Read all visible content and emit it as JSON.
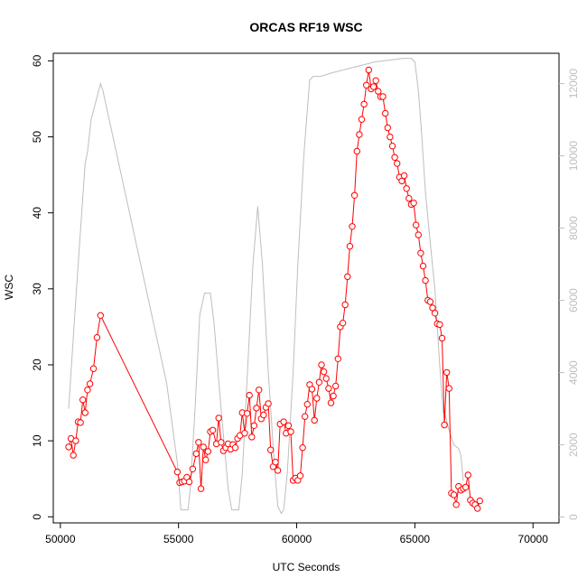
{
  "chart_data": {
    "type": "line",
    "title": "ORCAS RF19 WSC",
    "xlabel": "UTC Seconds",
    "ylabel": "WSC",
    "xlim": [
      49700,
      71100
    ],
    "ylim": [
      -0.8,
      61.0
    ],
    "y2lim": [
      -160,
      12840
    ],
    "x_ticks": [
      50000,
      55000,
      60000,
      65000,
      70000
    ],
    "y_ticks": [
      0,
      10,
      20,
      30,
      40,
      50,
      60
    ],
    "y2_ticks": [
      0,
      2000,
      4000,
      6000,
      8000,
      10000,
      12000
    ],
    "colors": {
      "wsc": "#ff0000",
      "altitude": "#bebebe",
      "axis": "#000000"
    },
    "series": [
      {
        "key": "wsc",
        "axis": "left",
        "style": "line-with-circles",
        "points": [
          [
            50350,
            9.2
          ],
          [
            50450,
            10.3
          ],
          [
            50550,
            8.1
          ],
          [
            50650,
            10.0
          ],
          [
            50750,
            12.5
          ],
          [
            50850,
            12.4
          ],
          [
            50950,
            15.4
          ],
          [
            51050,
            13.7
          ],
          [
            51150,
            16.7
          ],
          [
            51250,
            17.5
          ],
          [
            51400,
            19.5
          ],
          [
            51550,
            23.6
          ],
          [
            51700,
            26.5
          ],
          [
            54950,
            5.9
          ],
          [
            55050,
            4.5
          ],
          [
            55150,
            4.6
          ],
          [
            55250,
            4.7
          ],
          [
            55350,
            5.2
          ],
          [
            55450,
            4.6
          ],
          [
            55600,
            6.3
          ],
          [
            55750,
            8.3
          ],
          [
            55850,
            9.8
          ],
          [
            55950,
            3.7
          ],
          [
            56050,
            9.2
          ],
          [
            56150,
            7.5
          ],
          [
            56250,
            8.6
          ],
          [
            56350,
            11.2
          ],
          [
            56450,
            11.4
          ],
          [
            56600,
            9.6
          ],
          [
            56700,
            13.0
          ],
          [
            56800,
            9.8
          ],
          [
            56900,
            8.7
          ],
          [
            57000,
            9.1
          ],
          [
            57100,
            9.6
          ],
          [
            57200,
            8.9
          ],
          [
            57300,
            9.5
          ],
          [
            57400,
            9.1
          ],
          [
            57500,
            10.3
          ],
          [
            57600,
            10.7
          ],
          [
            57700,
            13.7
          ],
          [
            57800,
            11.0
          ],
          [
            57900,
            13.6
          ],
          [
            58000,
            16.0
          ],
          [
            58100,
            10.5
          ],
          [
            58200,
            12.0
          ],
          [
            58300,
            14.3
          ],
          [
            58400,
            16.7
          ],
          [
            58500,
            12.9
          ],
          [
            58600,
            13.4
          ],
          [
            58700,
            14.4
          ],
          [
            58800,
            14.9
          ],
          [
            58900,
            8.8
          ],
          [
            59000,
            6.6
          ],
          [
            59100,
            7.2
          ],
          [
            59200,
            6.1
          ],
          [
            59300,
            12.2
          ],
          [
            59450,
            12.5
          ],
          [
            59550,
            11.0
          ],
          [
            59650,
            12.0
          ],
          [
            59750,
            11.2
          ],
          [
            59850,
            4.8
          ],
          [
            59950,
            5.1
          ],
          [
            60050,
            4.8
          ],
          [
            60150,
            5.4
          ],
          [
            60250,
            9.1
          ],
          [
            60350,
            13.2
          ],
          [
            60450,
            14.8
          ],
          [
            60550,
            17.4
          ],
          [
            60650,
            16.8
          ],
          [
            60750,
            12.7
          ],
          [
            60850,
            15.6
          ],
          [
            60950,
            17.7
          ],
          [
            61050,
            20.0
          ],
          [
            61150,
            19.1
          ],
          [
            61250,
            18.2
          ],
          [
            61350,
            16.9
          ],
          [
            61450,
            15.0
          ],
          [
            61550,
            15.9
          ],
          [
            61650,
            17.2
          ],
          [
            61750,
            20.8
          ],
          [
            61850,
            25.0
          ],
          [
            61950,
            25.5
          ],
          [
            62050,
            27.9
          ],
          [
            62150,
            31.6
          ],
          [
            62250,
            35.6
          ],
          [
            62350,
            38.2
          ],
          [
            62450,
            42.3
          ],
          [
            62550,
            48.1
          ],
          [
            62650,
            50.3
          ],
          [
            62750,
            52.3
          ],
          [
            62850,
            54.3
          ],
          [
            62950,
            56.8
          ],
          [
            63050,
            58.8
          ],
          [
            63150,
            56.3
          ],
          [
            63250,
            56.6
          ],
          [
            63350,
            57.4
          ],
          [
            63450,
            56.0
          ],
          [
            63550,
            55.3
          ],
          [
            63650,
            55.3
          ],
          [
            63750,
            53.1
          ],
          [
            63850,
            51.2
          ],
          [
            63950,
            50.0
          ],
          [
            64050,
            48.8
          ],
          [
            64150,
            47.3
          ],
          [
            64250,
            46.5
          ],
          [
            64350,
            44.7
          ],
          [
            64450,
            44.2
          ],
          [
            64550,
            44.9
          ],
          [
            64650,
            43.2
          ],
          [
            64750,
            41.9
          ],
          [
            64850,
            41.1
          ],
          [
            64950,
            41.3
          ],
          [
            65050,
            38.4
          ],
          [
            65150,
            37.1
          ],
          [
            65250,
            34.7
          ],
          [
            65350,
            33.0
          ],
          [
            65450,
            31.1
          ],
          [
            65550,
            28.5
          ],
          [
            65650,
            28.3
          ],
          [
            65750,
            27.5
          ],
          [
            65850,
            26.8
          ],
          [
            65950,
            25.4
          ],
          [
            66050,
            25.3
          ],
          [
            66150,
            23.5
          ],
          [
            66250,
            12.1
          ],
          [
            66350,
            19.0
          ],
          [
            66450,
            16.9
          ],
          [
            66550,
            3.1
          ],
          [
            66650,
            2.9
          ],
          [
            66750,
            1.6
          ],
          [
            66850,
            4.0
          ],
          [
            66950,
            3.5
          ],
          [
            67050,
            3.7
          ],
          [
            67150,
            3.9
          ],
          [
            67250,
            5.5
          ],
          [
            67350,
            2.2
          ],
          [
            67450,
            1.8
          ],
          [
            67550,
            1.6
          ],
          [
            67650,
            1.1
          ],
          [
            67750,
            2.1
          ]
        ]
      },
      {
        "key": "altitude",
        "axis": "right",
        "style": "line",
        "points": [
          [
            50350,
            3000
          ],
          [
            50700,
            6500
          ],
          [
            51050,
            9800
          ],
          [
            51150,
            10100
          ],
          [
            51300,
            11000
          ],
          [
            51700,
            12000
          ],
          [
            51800,
            11800
          ],
          [
            52500,
            9700
          ],
          [
            53500,
            6700
          ],
          [
            54500,
            3700
          ],
          [
            54950,
            1500
          ],
          [
            55100,
            200
          ],
          [
            55400,
            200
          ],
          [
            55500,
            800
          ],
          [
            55700,
            3000
          ],
          [
            55900,
            5600
          ],
          [
            56100,
            6200
          ],
          [
            56350,
            6200
          ],
          [
            56500,
            5400
          ],
          [
            56800,
            3000
          ],
          [
            57100,
            800
          ],
          [
            57250,
            200
          ],
          [
            57550,
            200
          ],
          [
            57700,
            1200
          ],
          [
            57900,
            3800
          ],
          [
            58150,
            7000
          ],
          [
            58350,
            8600
          ],
          [
            58550,
            7000
          ],
          [
            58800,
            4000
          ],
          [
            59050,
            1500
          ],
          [
            59200,
            300
          ],
          [
            59350,
            100
          ],
          [
            59450,
            200
          ],
          [
            59600,
            1200
          ],
          [
            59850,
            4000
          ],
          [
            60050,
            7000
          ],
          [
            60300,
            10000
          ],
          [
            60550,
            12100
          ],
          [
            60700,
            12200
          ],
          [
            61000,
            12200
          ],
          [
            61500,
            12300
          ],
          [
            62100,
            12400
          ],
          [
            62700,
            12500
          ],
          [
            63300,
            12600
          ],
          [
            63900,
            12650
          ],
          [
            64500,
            12700
          ],
          [
            64850,
            12700
          ],
          [
            65000,
            12600
          ],
          [
            65150,
            11800
          ],
          [
            65300,
            10500
          ],
          [
            65450,
            9000
          ],
          [
            65650,
            7600
          ],
          [
            65850,
            6300
          ],
          [
            66050,
            4200
          ],
          [
            66200,
            2900
          ],
          [
            66300,
            2800
          ],
          [
            66450,
            2400
          ],
          [
            66650,
            2000
          ],
          [
            66850,
            1900
          ],
          [
            66950,
            1700
          ],
          [
            67050,
            1000
          ]
        ]
      }
    ]
  }
}
